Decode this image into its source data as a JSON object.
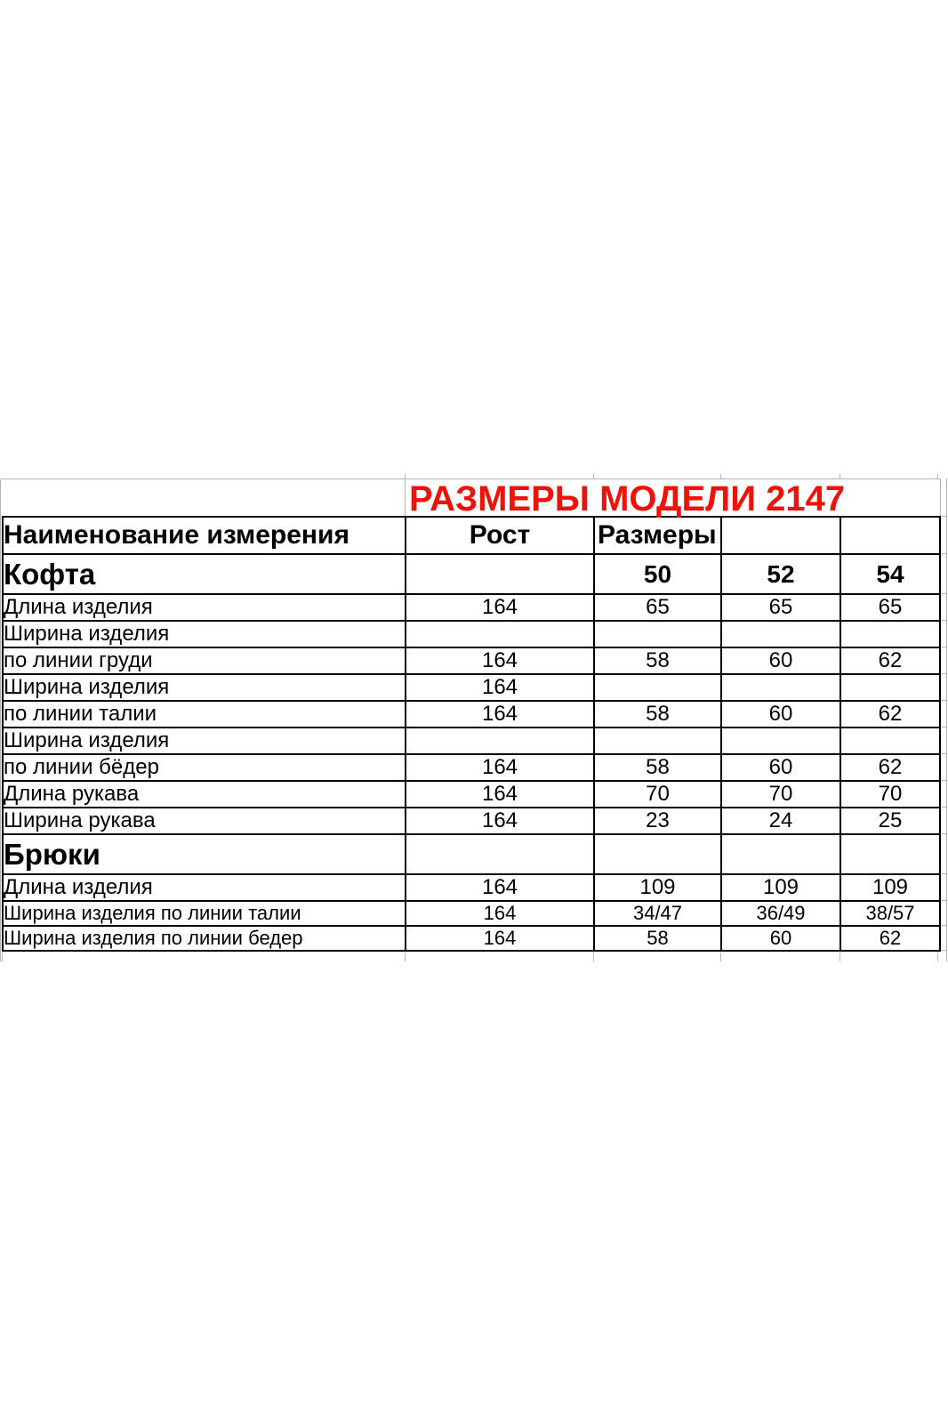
{
  "title": {
    "text": "РАЗМЕРЫ МОДЕЛИ 2147",
    "color": "#f01208"
  },
  "colors": {
    "title_red": "#f01208",
    "table_border": "#000000",
    "gridline_gray": "#b3b3b3"
  },
  "table": {
    "header": {
      "name": "Наименование измерения",
      "height_label": "Рост",
      "sizes_label": "Размеры"
    },
    "rows": [
      {
        "type": "section",
        "label": "Кофта",
        "cells": [
          "",
          "50",
          "52",
          "54"
        ]
      },
      {
        "type": "data",
        "label": "Длина изделия",
        "cells": [
          "164",
          "65",
          "65",
          "65"
        ]
      },
      {
        "type": "data",
        "label": "Ширина изделия",
        "cells": [
          "",
          "",
          "",
          ""
        ]
      },
      {
        "type": "data",
        "label": "по линии груди",
        "cells": [
          "164",
          "58",
          "60",
          "62"
        ]
      },
      {
        "type": "data",
        "label": "Ширина изделия",
        "cells": [
          "164",
          "",
          "",
          ""
        ]
      },
      {
        "type": "data",
        "label": "по линии талии",
        "cells": [
          "164",
          "58",
          "60",
          "62"
        ]
      },
      {
        "type": "data",
        "label": "Ширина изделия",
        "cells": [
          "",
          "",
          "",
          ""
        ]
      },
      {
        "type": "data",
        "label": "по линии бёдер",
        "cells": [
          "164",
          "58",
          "60",
          "62"
        ]
      },
      {
        "type": "data",
        "label": "Длина рукава",
        "cells": [
          "164",
          "70",
          "70",
          "70"
        ]
      },
      {
        "type": "data",
        "label": "Ширина рукава",
        "cells": [
          "164",
          "23",
          "24",
          "25"
        ]
      },
      {
        "type": "section",
        "label": "Брюки",
        "cells": [
          "",
          "",
          "",
          ""
        ]
      },
      {
        "type": "data",
        "label": "Длина изделия",
        "cells": [
          "164",
          "109",
          "109",
          "109"
        ]
      },
      {
        "type": "data-small",
        "label": "Ширина изделия по линии талии",
        "cells": [
          "164",
          "34/47",
          "36/49",
          "38/57"
        ]
      },
      {
        "type": "data-small",
        "label": "Ширина изделия по линии бедер",
        "cells": [
          "164",
          "58",
          "60",
          "62"
        ]
      }
    ]
  }
}
